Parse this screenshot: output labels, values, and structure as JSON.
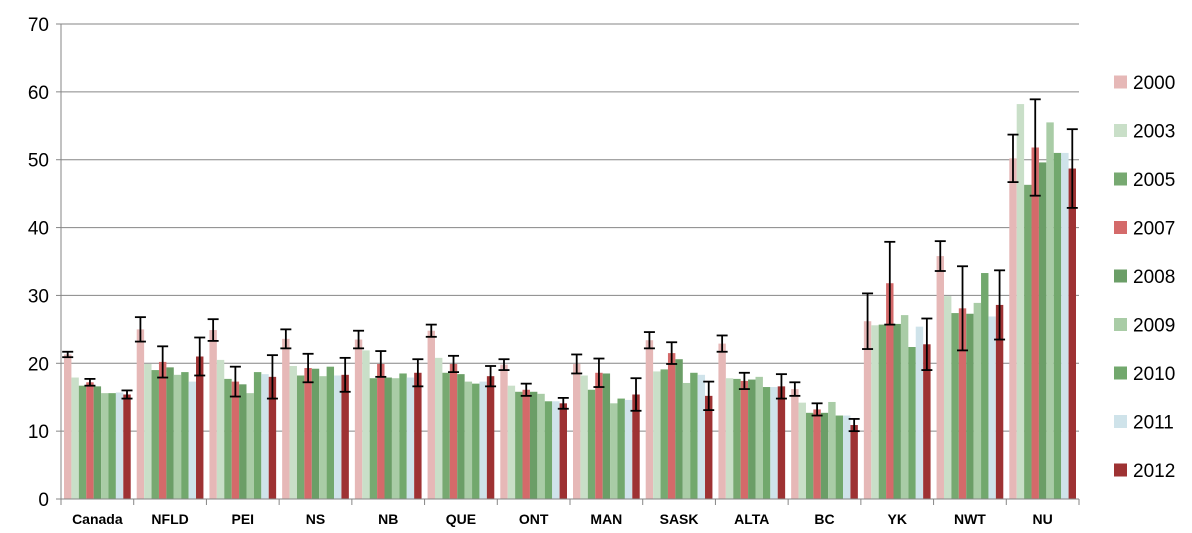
{
  "chart_data": {
    "type": "bar",
    "ylim": [
      0,
      70
    ],
    "yticks": [
      0,
      10,
      20,
      30,
      40,
      50,
      60,
      70
    ],
    "grid": "horizontal",
    "legend_position": "right",
    "categories": [
      "Canada",
      "NFLD",
      "PEI",
      "NS",
      "NB",
      "QUE",
      "ONT",
      "MAN",
      "SASK",
      "ALTA",
      "BC",
      "YK",
      "NWT",
      "NU"
    ],
    "series": [
      {
        "name": "2000",
        "color": "#e6b8b7",
        "values": [
          21.3,
          25.0,
          24.9,
          23.6,
          23.5,
          24.8,
          19.8,
          19.9,
          23.4,
          22.9,
          16.2,
          26.2,
          35.8,
          50.2
        ],
        "err": [
          0.4,
          1.8,
          1.6,
          1.4,
          1.3,
          0.9,
          0.8,
          1.4,
          1.2,
          1.2,
          1.0,
          4.1,
          2.2,
          3.5
        ]
      },
      {
        "name": "2003",
        "color": "#c9dfc8",
        "values": [
          17.9,
          19.9,
          20.5,
          19.6,
          21.9,
          20.8,
          16.7,
          18.2,
          18.8,
          17.8,
          14.2,
          25.6,
          29.9,
          58.2
        ]
      },
      {
        "name": "2005",
        "color": "#77a971",
        "values": [
          16.7,
          19.0,
          17.7,
          18.2,
          17.8,
          18.6,
          15.8,
          16.1,
          19.1,
          17.7,
          12.7,
          25.7,
          27.4,
          46.3
        ]
      },
      {
        "name": "2007",
        "color": "#d46a6a",
        "values": [
          17.2,
          20.2,
          17.3,
          19.3,
          19.9,
          19.9,
          16.1,
          18.6,
          21.5,
          17.4,
          13.2,
          31.8,
          28.1,
          51.8
        ],
        "err": [
          0.5,
          2.3,
          2.2,
          2.1,
          1.9,
          1.2,
          0.9,
          2.1,
          1.6,
          1.2,
          0.9,
          6.1,
          6.2,
          7.1
        ]
      },
      {
        "name": "2008",
        "color": "#6b9e67",
        "values": [
          16.6,
          19.4,
          16.9,
          19.2,
          17.9,
          18.4,
          15.8,
          18.5,
          20.6,
          17.6,
          12.7,
          25.8,
          27.3,
          49.6
        ]
      },
      {
        "name": "2009",
        "color": "#a9cca6",
        "values": [
          15.6,
          18.3,
          15.6,
          18.1,
          17.8,
          17.3,
          15.5,
          14.1,
          17.1,
          18.0,
          14.3,
          27.1,
          28.9,
          55.5
        ]
      },
      {
        "name": "2010",
        "color": "#72a86d",
        "values": [
          15.6,
          18.7,
          18.7,
          19.5,
          18.5,
          17.0,
          14.4,
          14.8,
          18.6,
          16.5,
          12.3,
          22.4,
          33.3,
          51.0
        ]
      },
      {
        "name": "2011",
        "color": "#cfe3ea",
        "values": [
          15.7,
          17.3,
          18.4,
          18.2,
          17.9,
          17.3,
          14.4,
          14.6,
          18.3,
          16.5,
          12.3,
          25.4,
          26.9,
          51.0
        ]
      },
      {
        "name": "2012",
        "color": "#9e3233",
        "values": [
          15.4,
          21.0,
          18.0,
          18.3,
          18.6,
          18.1,
          14.1,
          15.4,
          15.2,
          16.6,
          10.9,
          22.8,
          28.6,
          48.7
        ],
        "err": [
          0.6,
          2.8,
          3.2,
          2.5,
          2.0,
          1.5,
          0.8,
          2.4,
          2.1,
          1.8,
          0.9,
          3.8,
          5.1,
          5.8
        ]
      }
    ]
  }
}
